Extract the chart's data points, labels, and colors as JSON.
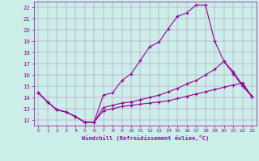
{
  "xlabel": "Windchill (Refroidissement éolien,°C)",
  "bg_color": "#cceee8",
  "line_color": "#990099",
  "xlim": [
    -0.5,
    23.5
  ],
  "ylim": [
    11.5,
    22.5
  ],
  "xticks": [
    0,
    1,
    2,
    3,
    4,
    5,
    6,
    7,
    8,
    9,
    10,
    11,
    12,
    13,
    14,
    15,
    16,
    17,
    18,
    19,
    20,
    21,
    22,
    23
  ],
  "yticks": [
    12,
    13,
    14,
    15,
    16,
    17,
    18,
    19,
    20,
    21,
    22
  ],
  "line1_x": [
    0,
    1,
    2,
    3,
    4,
    5,
    6,
    7,
    8,
    9,
    10,
    11,
    12,
    13,
    14,
    15,
    16,
    17,
    18,
    19,
    20,
    21,
    22,
    23
  ],
  "line1_y": [
    14.4,
    13.6,
    12.9,
    12.7,
    12.3,
    11.8,
    11.8,
    14.2,
    14.4,
    15.5,
    16.1,
    17.3,
    18.5,
    18.9,
    20.1,
    21.2,
    21.5,
    22.2,
    22.2,
    19.0,
    17.2,
    16.1,
    15.0,
    14.1
  ],
  "line2_x": [
    0,
    1,
    2,
    3,
    4,
    5,
    6,
    7,
    8,
    9,
    10,
    11,
    12,
    13,
    14,
    15,
    16,
    17,
    18,
    19,
    20,
    21,
    22,
    23
  ],
  "line2_y": [
    14.4,
    13.6,
    12.9,
    12.7,
    12.3,
    11.8,
    11.8,
    13.1,
    13.3,
    13.5,
    13.6,
    13.8,
    14.0,
    14.2,
    14.5,
    14.8,
    15.2,
    15.5,
    16.0,
    16.5,
    17.2,
    16.3,
    15.1,
    14.1
  ],
  "line3_x": [
    0,
    1,
    2,
    3,
    4,
    5,
    6,
    7,
    8,
    9,
    10,
    11,
    12,
    13,
    14,
    15,
    16,
    17,
    18,
    19,
    20,
    21,
    22,
    23
  ],
  "line3_y": [
    14.4,
    13.6,
    12.9,
    12.7,
    12.3,
    11.8,
    11.8,
    12.8,
    13.0,
    13.2,
    13.3,
    13.4,
    13.5,
    13.6,
    13.7,
    13.9,
    14.1,
    14.3,
    14.5,
    14.7,
    14.9,
    15.1,
    15.3,
    14.1
  ]
}
